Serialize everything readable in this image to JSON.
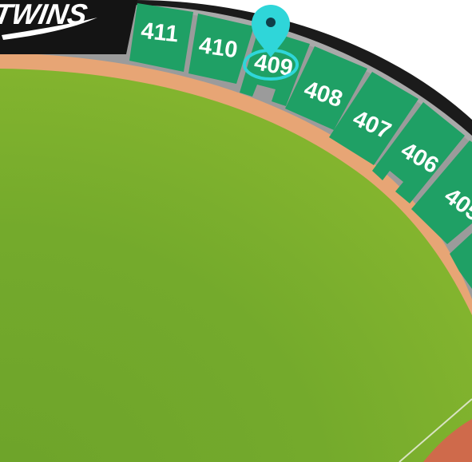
{
  "stadium": {
    "banner_text": "TWINS",
    "selected_section": "409",
    "sections": [
      {
        "id": "411",
        "label": "411"
      },
      {
        "id": "410",
        "label": "410"
      },
      {
        "id": "409",
        "label": "409"
      },
      {
        "id": "408",
        "label": "408"
      },
      {
        "id": "407",
        "label": "407"
      },
      {
        "id": "406",
        "label": "406"
      },
      {
        "id": "405",
        "label": "405"
      },
      {
        "id": "404",
        "label": ""
      }
    ]
  },
  "colors": {
    "section_fill": "#1fa065",
    "section_label": "#ffffff",
    "field": "#6fa52a",
    "warning_track": "#e7a575",
    "concourse": "#a9a9a9",
    "outer_wall": "#1b1b1b",
    "marker": "#2fd6d9",
    "infield_dirt": "#cf6a4b"
  }
}
